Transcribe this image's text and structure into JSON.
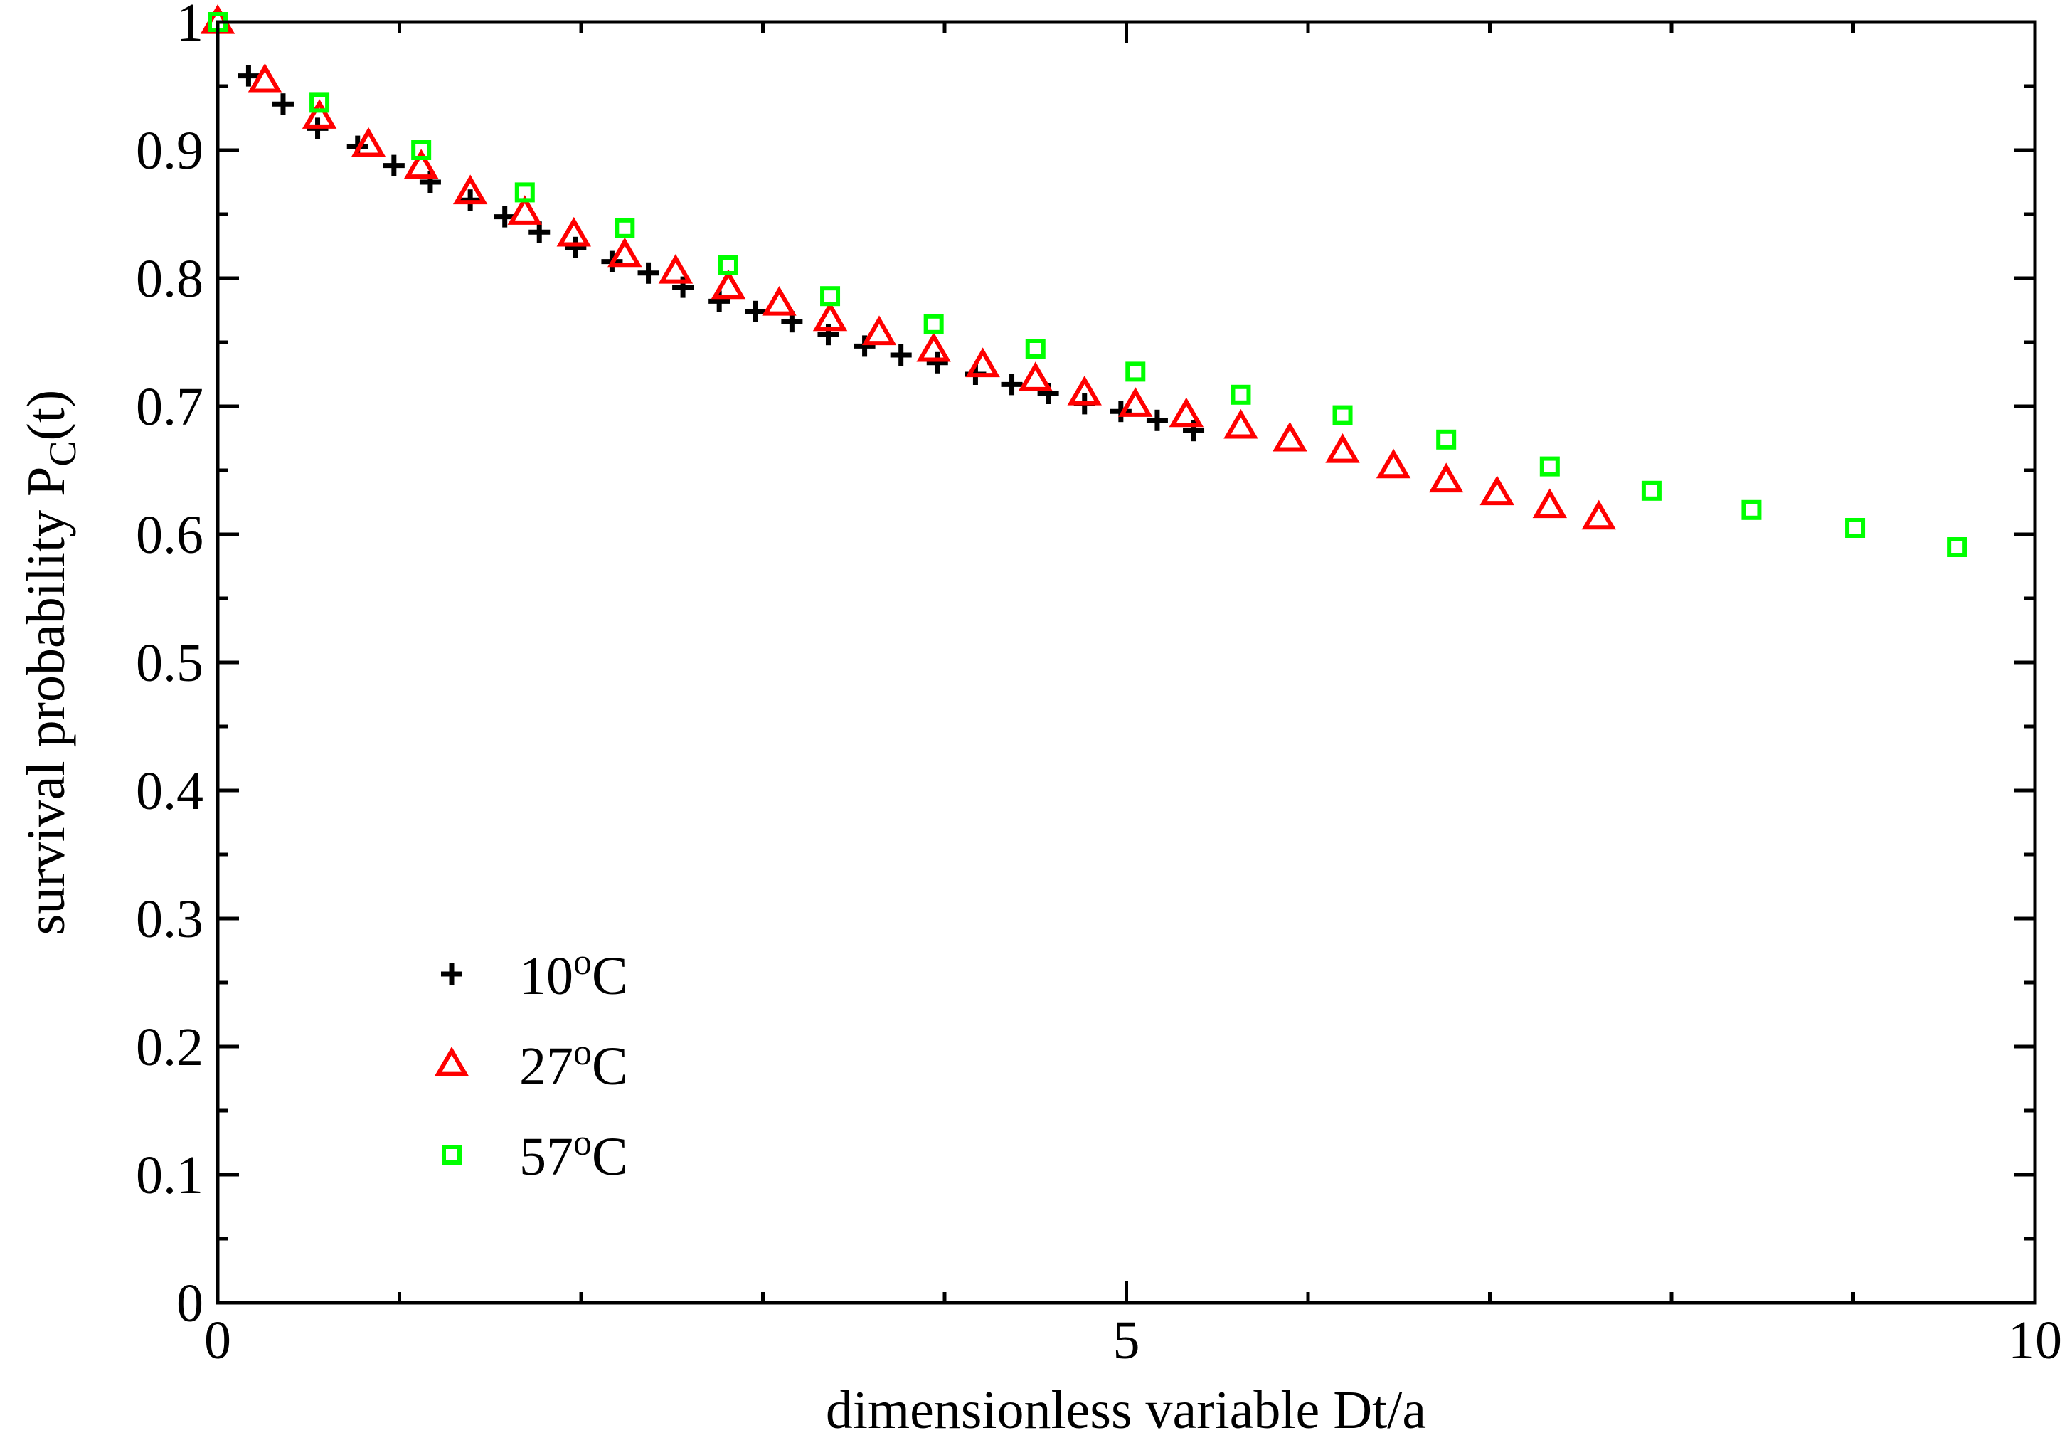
{
  "chart_data": {
    "type": "scatter",
    "title": "",
    "xlabel": "dimensionless variable Dt/a",
    "ylabel_main": "survival probability P",
    "ylabel_sub": "C",
    "ylabel_tail": "(t)",
    "xlim": [
      0,
      10
    ],
    "ylim": [
      0,
      1
    ],
    "x_ticks": [
      0,
      5,
      10
    ],
    "x_tick_labels": [
      "0",
      "5",
      "10"
    ],
    "y_ticks": [
      0,
      0.1,
      0.2,
      0.3,
      0.4,
      0.5,
      0.6,
      0.7,
      0.8,
      0.9,
      1
    ],
    "y_tick_labels": [
      "0",
      "0.1",
      "0.2",
      "0.3",
      "0.4",
      "0.5",
      "0.6",
      "0.7",
      "0.8",
      "0.9",
      "1"
    ],
    "grid": false,
    "legend_position": "bottom-left",
    "series": [
      {
        "name": "10°C",
        "label_num": "10",
        "label_deg": "o",
        "label_unit": "C",
        "marker": "plus",
        "color": "#000000",
        "x": [
          0.17,
          0.36,
          0.55,
          0.77,
          0.97,
          1.17,
          1.39,
          1.58,
          1.77,
          1.97,
          2.17,
          2.37,
          2.56,
          2.76,
          2.96,
          3.16,
          3.36,
          3.56,
          3.76,
          3.96,
          4.17,
          4.37,
          4.57,
          4.77,
          4.97,
          5.17,
          5.37
        ],
        "y": [
          0.958,
          0.936,
          0.917,
          0.903,
          0.888,
          0.875,
          0.861,
          0.848,
          0.836,
          0.824,
          0.813,
          0.804,
          0.793,
          0.782,
          0.774,
          0.766,
          0.756,
          0.747,
          0.74,
          0.734,
          0.725,
          0.717,
          0.71,
          0.702,
          0.696,
          0.689,
          0.681
        ]
      },
      {
        "name": "27°C",
        "label_num": "27",
        "label_deg": "o",
        "label_unit": "C",
        "marker": "triangle",
        "color": "#ff0000",
        "x": [
          0.0,
          0.26,
          0.56,
          0.83,
          1.12,
          1.39,
          1.69,
          1.96,
          2.24,
          2.52,
          2.81,
          3.09,
          3.37,
          3.64,
          3.94,
          4.21,
          4.5,
          4.77,
          5.05,
          5.33,
          5.63,
          5.9,
          6.19,
          6.47,
          6.76,
          7.04,
          7.33,
          7.6
        ],
        "y": [
          1.0,
          0.954,
          0.926,
          0.904,
          0.887,
          0.867,
          0.851,
          0.834,
          0.818,
          0.805,
          0.793,
          0.78,
          0.768,
          0.757,
          0.744,
          0.732,
          0.721,
          0.71,
          0.701,
          0.693,
          0.684,
          0.674,
          0.665,
          0.653,
          0.642,
          0.632,
          0.622,
          0.613
        ]
      },
      {
        "name": "57°C",
        "label_num": "57",
        "label_deg": "o",
        "label_unit": "C",
        "marker": "square",
        "color": "#00ff00",
        "x": [
          0.0,
          0.56,
          1.12,
          1.69,
          2.24,
          2.81,
          3.37,
          3.94,
          4.5,
          5.05,
          5.63,
          6.19,
          6.76,
          7.33,
          7.89,
          8.44,
          9.01,
          9.57
        ],
        "y": [
          1.0,
          0.937,
          0.9,
          0.867,
          0.839,
          0.81,
          0.786,
          0.764,
          0.745,
          0.727,
          0.709,
          0.693,
          0.674,
          0.653,
          0.634,
          0.619,
          0.605,
          0.59
        ]
      }
    ]
  }
}
